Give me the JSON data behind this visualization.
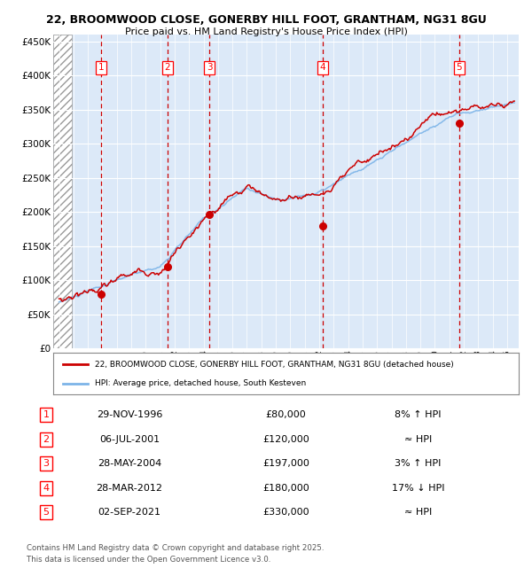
{
  "title1": "22, BROOMWOOD CLOSE, GONERBY HILL FOOT, GRANTHAM, NG31 8GU",
  "title2": "Price paid vs. HM Land Registry's House Price Index (HPI)",
  "ylim": [
    0,
    460000
  ],
  "yticks": [
    0,
    50000,
    100000,
    150000,
    200000,
    250000,
    300000,
    350000,
    400000,
    450000
  ],
  "ytick_labels": [
    "£0",
    "£50K",
    "£100K",
    "£150K",
    "£200K",
    "£250K",
    "£300K",
    "£350K",
    "£400K",
    "£450K"
  ],
  "xlim_start": 1993.6,
  "xlim_end": 2025.8,
  "background_color": "#dce9f8",
  "red_line_color": "#cc0000",
  "blue_line_color": "#7cb4e8",
  "sale_marker_color": "#cc0000",
  "vline_color": "#cc0000",
  "grid_color": "#ffffff",
  "legend_entry1": "22, BROOMWOOD CLOSE, GONERBY HILL FOOT, GRANTHAM, NG31 8GU (detached house)",
  "legend_entry2": "HPI: Average price, detached house, South Kesteven",
  "transactions": [
    {
      "num": 1,
      "date": 1996.91,
      "price": 80000,
      "label": "29-NOV-1996",
      "price_str": "£80,000",
      "hpi_str": "8% ↑ HPI"
    },
    {
      "num": 2,
      "date": 2001.51,
      "price": 120000,
      "label": "06-JUL-2001",
      "price_str": "£120,000",
      "hpi_str": "≈ HPI"
    },
    {
      "num": 3,
      "date": 2004.41,
      "price": 197000,
      "label": "28-MAY-2004",
      "price_str": "£197,000",
      "hpi_str": "3% ↑ HPI"
    },
    {
      "num": 4,
      "date": 2012.24,
      "price": 180000,
      "label": "28-MAR-2012",
      "price_str": "£180,000",
      "hpi_str": "17% ↓ HPI"
    },
    {
      "num": 5,
      "date": 2021.67,
      "price": 330000,
      "label": "02-SEP-2021",
      "price_str": "£330,000",
      "hpi_str": "≈ HPI"
    }
  ],
  "footer1": "Contains HM Land Registry data © Crown copyright and database right 2025.",
  "footer2": "This data is licensed under the Open Government Licence v3.0."
}
